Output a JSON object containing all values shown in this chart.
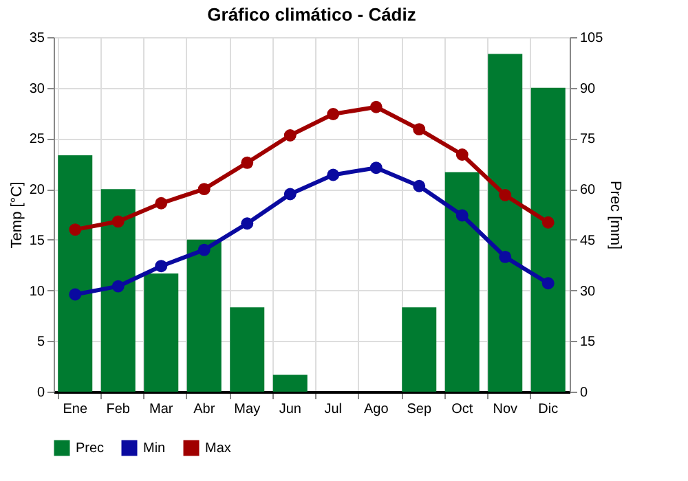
{
  "chart_data": {
    "type": "bar",
    "title": "Gráfico climático - Cádiz",
    "ylabel": "Temp [°C]",
    "y2label": "Prec [mm]",
    "categories": [
      "Ene",
      "Feb",
      "Mar",
      "Abr",
      "May",
      "Jun",
      "Jul",
      "Ago",
      "Sep",
      "Oct",
      "Nov",
      "Dic"
    ],
    "series": [
      {
        "name": "Prec",
        "axis": "y2",
        "color": "#007b30",
        "values": [
          70,
          60,
          35,
          45,
          25,
          5,
          0,
          0,
          25,
          65,
          100,
          90
        ]
      },
      {
        "name": "Min",
        "type": "line",
        "color": "#0a0aa0",
        "values": [
          9.6,
          10.4,
          12.4,
          14.0,
          16.6,
          19.5,
          21.4,
          22.1,
          20.3,
          17.4,
          13.3,
          10.7
        ]
      },
      {
        "name": "Max",
        "type": "line",
        "color": "#a00000",
        "values": [
          16.0,
          16.8,
          18.6,
          20.0,
          22.6,
          25.3,
          27.4,
          28.1,
          25.9,
          23.4,
          19.4,
          16.7
        ]
      }
    ],
    "ylim": [
      0,
      35
    ],
    "yticks": [
      0,
      5,
      10,
      15,
      20,
      25,
      30,
      35
    ],
    "y2lim": [
      0,
      105
    ],
    "y2ticks": [
      0,
      15,
      30,
      45,
      60,
      75,
      90,
      105
    ],
    "grid": true,
    "legend": "bottom",
    "marker": "circle",
    "line_style": "solid"
  }
}
